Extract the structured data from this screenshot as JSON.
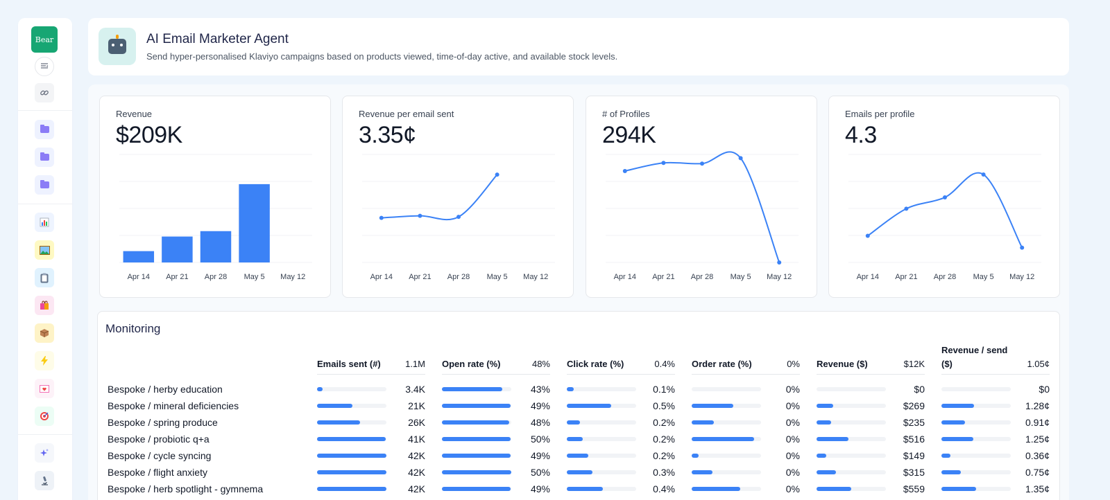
{
  "sidebar": {
    "logo": "Bear",
    "items": [
      {
        "icon": "collapse-icon"
      },
      {
        "icon": "link-icon"
      },
      {
        "icon": "folder-icon"
      },
      {
        "icon": "folder-icon"
      },
      {
        "icon": "folder-icon"
      },
      {
        "icon": "bar-chart-icon"
      },
      {
        "icon": "image-icon"
      },
      {
        "icon": "clipboard-icon"
      },
      {
        "icon": "shopping-bag-icon"
      },
      {
        "icon": "package-icon"
      },
      {
        "icon": "lightning-icon"
      },
      {
        "icon": "love-letter-icon"
      },
      {
        "icon": "target-icon"
      },
      {
        "icon": "sparkles-icon"
      },
      {
        "icon": "microscope-icon"
      }
    ]
  },
  "header": {
    "title": "AI Email Marketer Agent",
    "subtitle": "Send hyper-personalised Klaviyo campaigns based on products viewed, time-of-day active, and available stock levels.",
    "avatar_icon": "robot-icon"
  },
  "colors": {
    "accent": "#3b82f6",
    "brand": "#17a673",
    "track": "#f1f3f6"
  },
  "chart_data": [
    {
      "type": "bar",
      "label": "Revenue",
      "value": "$209K",
      "categories": [
        "Apr 14",
        "Apr 21",
        "Apr 28",
        "May 5",
        "May 12"
      ],
      "values": [
        21,
        48,
        58,
        145,
        null
      ],
      "ylim": [
        0,
        200
      ]
    },
    {
      "type": "line",
      "label": "Revenue per email sent",
      "value": "3.35¢",
      "categories": [
        "Apr 14",
        "Apr 21",
        "Apr 28",
        "May 5",
        "May 12"
      ],
      "values": [
        1.7,
        1.78,
        1.74,
        3.35,
        null
      ],
      "ylim": [
        0,
        4.12
      ]
    },
    {
      "type": "line",
      "label": "# of Profiles",
      "value": "294K",
      "categories": [
        "Apr 14",
        "Apr 21",
        "Apr 28",
        "May 5",
        "May 12"
      ],
      "values": [
        270,
        294,
        292,
        308,
        0
      ],
      "ylim": [
        0,
        319
      ]
    },
    {
      "type": "line",
      "label": "Emails per profile",
      "value": "4.3",
      "categories": [
        "Apr 14",
        "Apr 21",
        "Apr 28",
        "May 5",
        "May 12"
      ],
      "values": [
        1.06,
        2.14,
        2.59,
        3.5,
        0.59
      ],
      "ylim": [
        0,
        4.3
      ]
    }
  ],
  "monitoring": {
    "title": "Monitoring",
    "columns": [
      {
        "header": "Emails sent (#)",
        "total": "1.1M"
      },
      {
        "header": "Open rate (%)",
        "total": "48%"
      },
      {
        "header": "Click rate (%)",
        "total": "0.4%"
      },
      {
        "header": "Order rate (%)",
        "total": "0%"
      },
      {
        "header": "Revenue ($)",
        "total": "$12K"
      },
      {
        "header_line1": "Revenue / send",
        "header_line2": "($)",
        "total": "1.05¢"
      }
    ],
    "rows": [
      {
        "label": "Bespoke / herby education",
        "cells": [
          {
            "text": "3.4K",
            "fill": 0.08
          },
          {
            "text": "43%",
            "fill": 0.87
          },
          {
            "text": "0.1%",
            "fill": 0.1
          },
          {
            "text": "0%",
            "fill": 0.0
          },
          {
            "text": "$0",
            "fill": 0.0
          },
          {
            "text": "$0",
            "fill": 0.0
          }
        ]
      },
      {
        "label": "Bespoke / mineral deficiencies",
        "cells": [
          {
            "text": "21K",
            "fill": 0.51
          },
          {
            "text": "49%",
            "fill": 0.99
          },
          {
            "text": "0.5%",
            "fill": 0.64
          },
          {
            "text": "0%",
            "fill": 0.6
          },
          {
            "text": "$269",
            "fill": 0.24
          },
          {
            "text": "1.28¢",
            "fill": 0.47
          }
        ]
      },
      {
        "label": "Bespoke / spring produce",
        "cells": [
          {
            "text": "26K",
            "fill": 0.62
          },
          {
            "text": "48%",
            "fill": 0.97
          },
          {
            "text": "0.2%",
            "fill": 0.19
          },
          {
            "text": "0%",
            "fill": 0.32
          },
          {
            "text": "$235",
            "fill": 0.21
          },
          {
            "text": "0.91¢",
            "fill": 0.34
          }
        ]
      },
      {
        "label": "Bespoke / probiotic q+a",
        "cells": [
          {
            "text": "41K",
            "fill": 0.99
          },
          {
            "text": "50%",
            "fill": 0.99
          },
          {
            "text": "0.2%",
            "fill": 0.23
          },
          {
            "text": "0%",
            "fill": 0.9
          },
          {
            "text": "$516",
            "fill": 0.46
          },
          {
            "text": "1.25¢",
            "fill": 0.46
          }
        ]
      },
      {
        "label": "Bespoke / cycle syncing",
        "cells": [
          {
            "text": "42K",
            "fill": 1.0
          },
          {
            "text": "49%",
            "fill": 0.99
          },
          {
            "text": "0.2%",
            "fill": 0.31
          },
          {
            "text": "0%",
            "fill": 0.1
          },
          {
            "text": "$149",
            "fill": 0.14
          },
          {
            "text": "0.36¢",
            "fill": 0.13
          }
        ]
      },
      {
        "label": "Bespoke / flight anxiety",
        "cells": [
          {
            "text": "42K",
            "fill": 1.0
          },
          {
            "text": "50%",
            "fill": 1.0
          },
          {
            "text": "0.3%",
            "fill": 0.37
          },
          {
            "text": "0%",
            "fill": 0.3
          },
          {
            "text": "$315",
            "fill": 0.28
          },
          {
            "text": "0.75¢",
            "fill": 0.28
          }
        ]
      },
      {
        "label": "Bespoke / herb spotlight - gymnema",
        "cells": [
          {
            "text": "42K",
            "fill": 1.0
          },
          {
            "text": "49%",
            "fill": 0.99
          },
          {
            "text": "0.4%",
            "fill": 0.52
          },
          {
            "text": "0%",
            "fill": 0.7
          },
          {
            "text": "$559",
            "fill": 0.5
          },
          {
            "text": "1.35¢",
            "fill": 0.5
          }
        ]
      }
    ]
  }
}
